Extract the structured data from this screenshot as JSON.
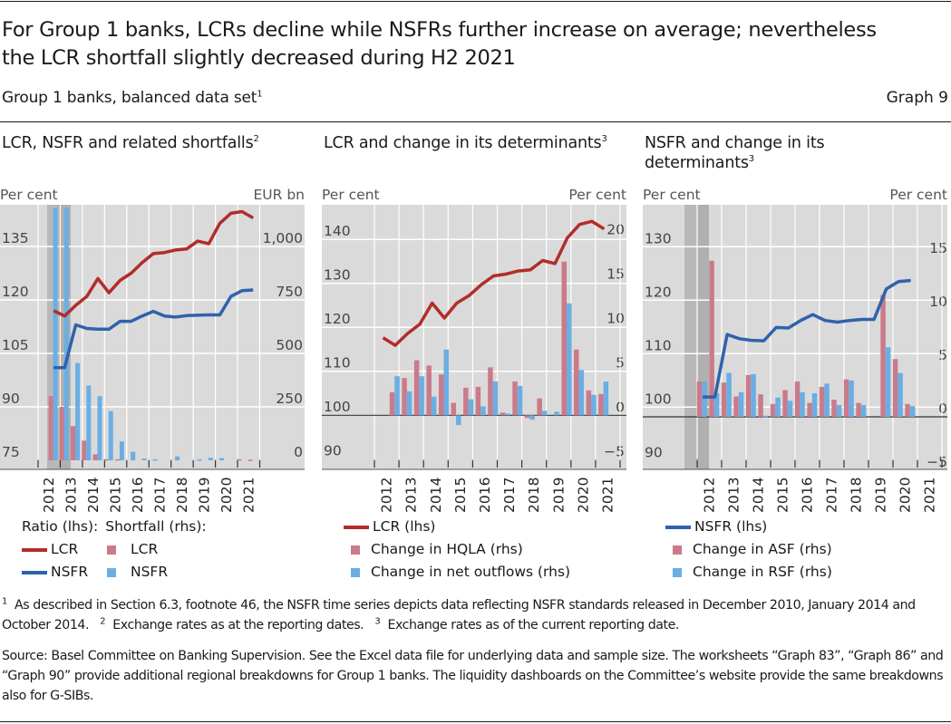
{
  "header": {
    "title": "For Group 1 banks, LCRs decline while NSFRs further increase on average; nevertheless the LCR shortfall slightly decreased during H2 2021",
    "title_line1": "For Group 1 banks, LCRs decline while NSFRs further increase on average; nevertheless",
    "title_line2": "the LCR shortfall slightly decreased during H2 2021",
    "subtitle": "Group 1 banks, balanced data set",
    "subtitle_sup": "1",
    "graph_number": "Graph 9"
  },
  "colors": {
    "lcr_line": "#b22d2a",
    "nsfr_line": "#2f62ad",
    "pink_bar": "#c97b8a",
    "blue_bar": "#6aaee4",
    "plot_bg": "#dadada",
    "shade": "#b4b4b4",
    "grid": "#ffffff"
  },
  "legends": {
    "panel1": {
      "ratio_header": "Ratio (lhs):",
      "shortfall_header": "Shortfall (rhs):",
      "lcr_line": "LCR",
      "nsfr_line": "NSFR",
      "lcr_bar": "LCR",
      "nsfr_bar": "NSFR"
    },
    "panel2": {
      "line": "LCR (lhs)",
      "pink": "Change in HQLA (rhs)",
      "blue": "Change in net outflows (rhs)"
    },
    "panel3": {
      "line": "NSFR (lhs)",
      "pink": "Change in ASF (rhs)",
      "blue": "Change in RSF (rhs)"
    }
  },
  "footnotes": {
    "n1_mark": "1",
    "n1": "As described in Section 6.3, footnote 46, the NSFR time series depicts data reflecting NSFR standards released in December 2010, January 2014 and October 2014.",
    "n2_mark": "2",
    "n2": "Exchange rates as at the reporting dates.",
    "n3_mark": "3",
    "n3": "Exchange rates as of the current reporting date.",
    "source": "Source: Basel Committee on Banking Supervision. See the Excel data file for underlying data and sample size. The worksheets “Graph 83”, “Graph 86” and “Graph 90” provide additional regional breakdowns for Group 1 banks. The liquidity dashboards on the Committee’s website provide the same breakdowns also for G-SIBs."
  },
  "chart_data": [
    {
      "type": "bar",
      "title": "LCR, NSFR and related shortfalls",
      "title_sup": "2",
      "ylabel_left": "Per cent",
      "ylabel_right": "EUR bn",
      "ylim_left": [
        75,
        145
      ],
      "yticks_left": [
        75,
        90,
        105,
        120,
        135
      ],
      "ylim_right": [
        0,
        1180
      ],
      "yticks_right": [
        "0",
        "250",
        "500",
        "750",
        "1,000"
      ],
      "yticks_right_values": [
        0,
        250,
        500,
        750,
        1000
      ],
      "categories": [
        "2012",
        "2013",
        "2014",
        "2015",
        "2016",
        "2017",
        "2018",
        "2019",
        "2020",
        "2021"
      ],
      "x_period": "half-yearly, H1 2012 to H2 2021",
      "shaded_periods": [
        "H1 2012",
        "H2 2012"
      ],
      "grid": true,
      "series": [
        {
          "name": "LCR",
          "kind": "line",
          "axis": "lhs",
          "values": [
            117.0,
            115.5,
            118.5,
            121.0,
            126.0,
            122.0,
            125.5,
            127.5,
            130.5,
            133.0,
            133.3,
            134.0,
            134.3,
            136.5,
            135.8,
            141.5,
            144.3,
            144.8,
            143.0
          ]
        },
        {
          "name": "NSFR",
          "kind": "line",
          "axis": "lhs",
          "values": [
            101.0,
            101.0,
            113.0,
            112.0,
            111.8,
            111.8,
            114.0,
            114.0,
            115.5,
            116.8,
            115.5,
            115.2,
            115.6,
            115.7,
            115.8,
            115.8,
            121.0,
            122.6,
            122.8
          ]
        },
        {
          "name": "LCR shortfall",
          "kind": "bar",
          "axis": "rhs",
          "values": [
            300,
            250,
            160,
            92,
            28,
            5,
            5,
            0,
            0,
            0,
            0,
            0,
            0,
            0,
            0,
            0,
            0,
            5,
            3
          ]
        },
        {
          "name": "NSFR shortfall",
          "kind": "bar",
          "axis": "rhs",
          "values": [
            1180,
            1180,
            455,
            350,
            300,
            230,
            88,
            40,
            8,
            5,
            0,
            18,
            0,
            4,
            12,
            10,
            0,
            0,
            0
          ]
        }
      ]
    },
    {
      "type": "bar",
      "title": "LCR and change in its determinants",
      "title_sup": "3",
      "ylabel_left": "Per cent",
      "ylabel_right": "Per cent",
      "ylim_left": [
        90,
        148
      ],
      "yticks_left": [
        90,
        100,
        110,
        120,
        130,
        140
      ],
      "ylim_right": [
        -5,
        24
      ],
      "yticks_right": [
        "−5",
        "0",
        "5",
        "10",
        "15",
        "20"
      ],
      "yticks_right_values": [
        -5,
        0,
        5,
        10,
        15,
        20
      ],
      "categories": [
        "2012",
        "2013",
        "2014",
        "2015",
        "2016",
        "2017",
        "2018",
        "2019",
        "2020",
        "2021"
      ],
      "x_period": "half-yearly, H1 2012 to H2 2021",
      "grid": true,
      "series": [
        {
          "name": "LCR (lhs)",
          "kind": "line",
          "axis": "lhs",
          "values": [
            117.6,
            115.9,
            118.6,
            120.7,
            125.5,
            122.1,
            125.5,
            127.2,
            129.7,
            131.7,
            132.1,
            132.8,
            133.1,
            135.2,
            134.5,
            140.3,
            143.4,
            144.1,
            142.4
          ]
        },
        {
          "name": "Change in HQLA (rhs)",
          "kind": "bar",
          "axis": "rhs",
          "values": [
            null,
            2.6,
            4.2,
            6.2,
            5.6,
            4.6,
            1.4,
            3.1,
            3.2,
            5.4,
            0.3,
            3.8,
            -0.3,
            1.9,
            null,
            17.3,
            7.4,
            2.8,
            2.4
          ]
        },
        {
          "name": "Change in net outflows (rhs)",
          "kind": "bar",
          "axis": "rhs",
          "values": [
            null,
            4.4,
            2.7,
            4.4,
            2.1,
            7.4,
            -1.1,
            1.8,
            1.0,
            3.8,
            0.2,
            3.3,
            -0.5,
            0.5,
            0.4,
            12.6,
            5.1,
            2.3,
            3.8
          ]
        }
      ]
    },
    {
      "type": "bar",
      "title": "NSFR and change in its determinants",
      "title_sup": "3",
      "ylabel_left": "Per cent",
      "ylabel_right": "Per cent",
      "ylim_left": [
        90,
        136
      ],
      "yticks_left": [
        90,
        100,
        110,
        120,
        130
      ],
      "ylim_right": [
        -5,
        18
      ],
      "yticks_right": [
        "−5",
        "0",
        "5",
        "10",
        "15"
      ],
      "yticks_right_values": [
        -5,
        0,
        5,
        10,
        15
      ],
      "categories": [
        "2012",
        "2013",
        "2014",
        "2015",
        "2016",
        "2017",
        "2018",
        "2019",
        "2020",
        "2021"
      ],
      "x_period": "half-yearly, H1 2012 to H2 2021",
      "shaded_periods": [
        "H1 2012",
        "H2 2012"
      ],
      "grid": true,
      "series": [
        {
          "name": "NSFR (lhs)",
          "kind": "line",
          "axis": "lhs",
          "values": [
            101.9,
            101.9,
            113.6,
            112.8,
            112.5,
            112.4,
            114.9,
            114.8,
            116.2,
            117.3,
            116.2,
            115.9,
            116.2,
            116.4,
            116.4,
            122.1,
            123.5,
            123.7
          ]
        },
        {
          "name": "Change in ASF (rhs)",
          "kind": "bar",
          "axis": "rhs",
          "values": [
            3.3,
            14.6,
            3.2,
            1.9,
            3.9,
            2.1,
            1.2,
            2.5,
            3.3,
            1.3,
            2.8,
            1.6,
            3.5,
            1.3,
            null,
            11.4,
            5.4,
            1.2
          ]
        },
        {
          "name": "Change in RSF (rhs)",
          "kind": "bar",
          "axis": "rhs",
          "values": [
            3.3,
            2.2,
            4.1,
            2.3,
            4.0,
            0.1,
            1.8,
            1.5,
            2.3,
            2.2,
            3.1,
            1.1,
            3.4,
            1.1,
            null,
            6.5,
            4.1,
            1.0
          ]
        }
      ]
    }
  ]
}
